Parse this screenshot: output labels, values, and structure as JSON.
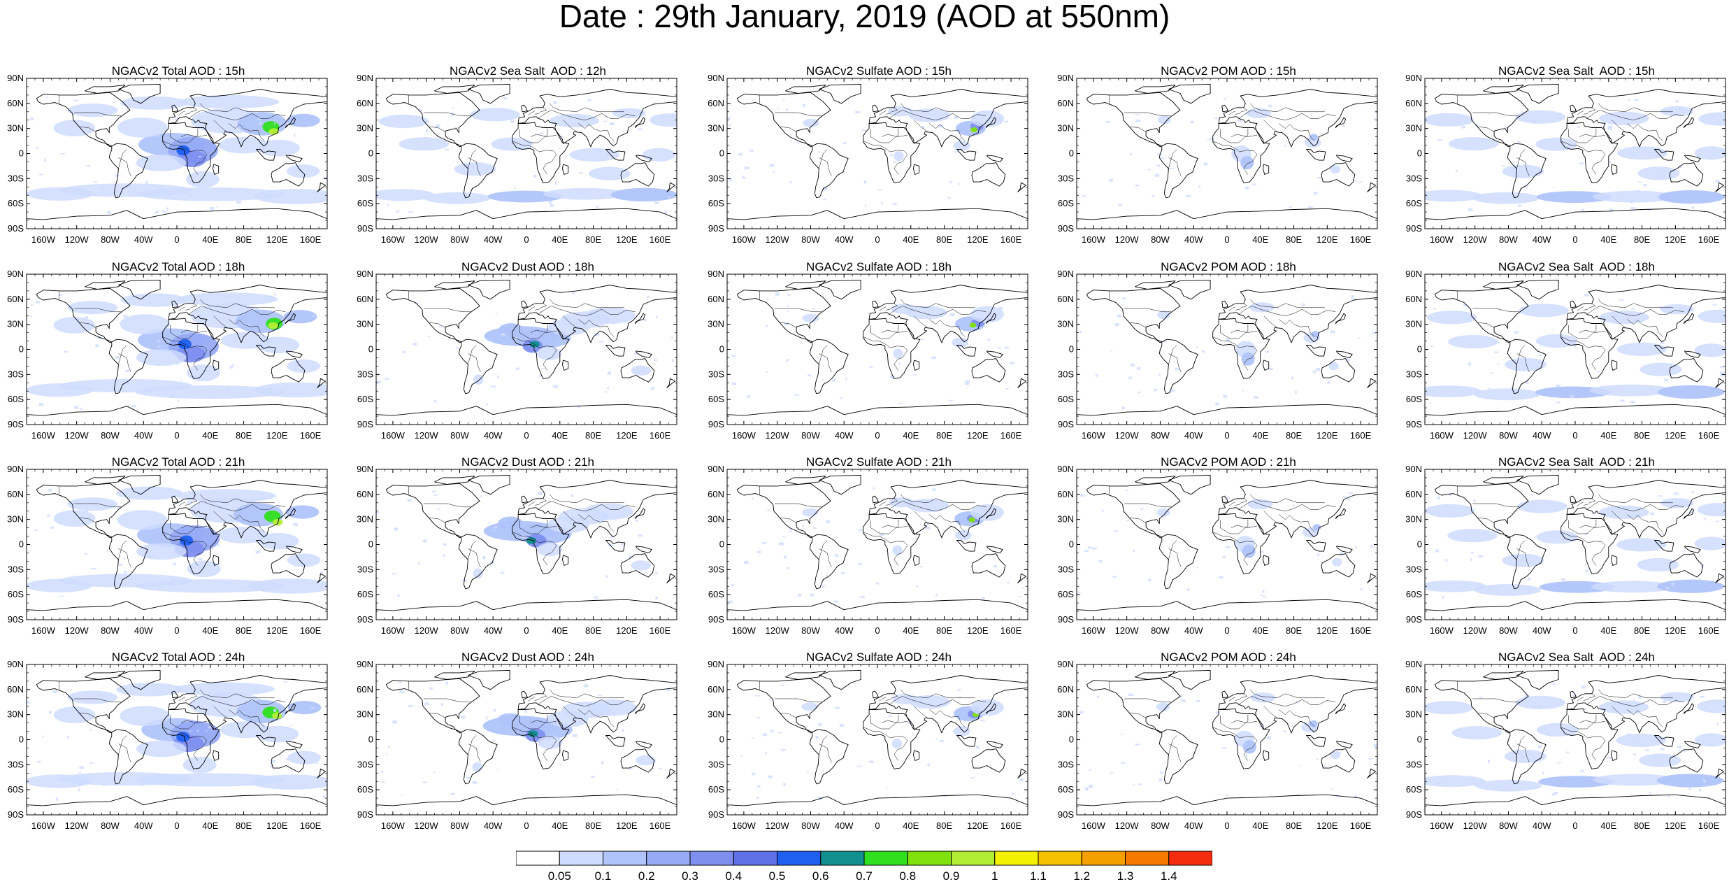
{
  "title": "Date : 29th January, 2019 (AOD at 550nm)",
  "panels": [
    [
      "NGACv2 Total AOD : 15h",
      "NGACv2 Sea Salt  AOD : 12h",
      "NGACv2 Sulfate AOD : 15h",
      "NGACv2 POM AOD : 15h",
      "NGACv2 Sea Salt  AOD : 15h"
    ],
    [
      "NGACv2 Total AOD : 18h",
      "NGACv2 Dust AOD : 18h",
      "NGACv2 Sulfate AOD : 18h",
      "NGACv2 POM AOD : 18h",
      "NGACv2 Sea Salt  AOD : 18h"
    ],
    [
      "NGACv2 Total AOD : 21h",
      "NGACv2 Dust AOD : 21h",
      "NGACv2 Sulfate AOD : 21h",
      "NGACv2 POM AOD : 21h",
      "NGACv2 Sea Salt  AOD : 21h"
    ],
    [
      "NGACv2 Total AOD : 24h",
      "NGACv2 Dust AOD : 24h",
      "NGACv2 Sulfate AOD : 24h",
      "NGACv2 POM AOD : 24h",
      "NGACv2 Sea Salt  AOD : 24h"
    ]
  ],
  "lat_ticks": [
    "90N",
    "60N",
    "30N",
    "0",
    "30S",
    "60S",
    "90S"
  ],
  "lon_ticks": [
    "160W",
    "120W",
    "80W",
    "40W",
    "0",
    "40E",
    "80E",
    "120E",
    "160E"
  ],
  "colorbar": {
    "colors": [
      "#ffffff",
      "#cfdcff",
      "#b0c4fb",
      "#97aaf6",
      "#7f8ff0",
      "#5f6fe6",
      "#1f60f0",
      "#10908e",
      "#30e020",
      "#80e00c",
      "#b4ee34",
      "#f2f200",
      "#f5c000",
      "#f5a000",
      "#f57a00",
      "#f52c10"
    ],
    "labels": [
      "0.05",
      "0.1",
      "0.2",
      "0.3",
      "0.4",
      "0.5",
      "0.6",
      "0.7",
      "0.8",
      "0.9",
      "1",
      "1.1",
      "1.2",
      "1.3",
      "1.4"
    ]
  }
}
